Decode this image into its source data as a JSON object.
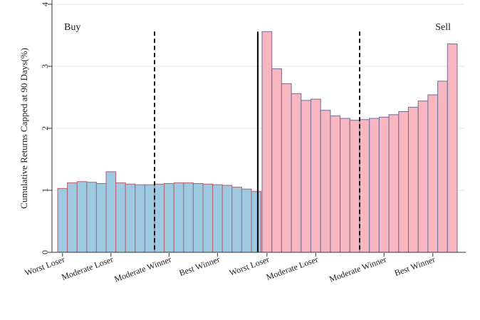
{
  "chart_data": {
    "type": "bar",
    "ylabel": "Cumulative Returns Capped at 90 Days(%)",
    "xlabel": "",
    "ylim": [
      0,
      4
    ],
    "yticks": [
      0,
      1,
      2,
      3,
      4
    ],
    "grid": true,
    "panels": [
      {
        "label": "Buy",
        "color": "#9ecae1",
        "edge_color": "#b06070",
        "values": [
          1.03,
          1.12,
          1.14,
          1.13,
          1.11,
          1.3,
          1.12,
          1.1,
          1.09,
          1.09,
          1.1,
          1.11,
          1.12,
          1.12,
          1.11,
          1.1,
          1.09,
          1.08,
          1.05,
          1.02,
          0.98
        ],
        "divider_after_index": 9,
        "tick_labels": [
          {
            "text": "Worst Loser",
            "index": 0
          },
          {
            "text": "Moderate Loser",
            "index": 5
          },
          {
            "text": "Moderate Winner",
            "index": 11
          },
          {
            "text": "Best Winner",
            "index": 16
          }
        ]
      },
      {
        "label": "Sell",
        "color": "#f7b6c0",
        "edge_color": "#6b6f96",
        "values": [
          3.56,
          2.96,
          2.72,
          2.56,
          2.45,
          2.47,
          2.29,
          2.2,
          2.16,
          2.13,
          2.14,
          2.16,
          2.18,
          2.22,
          2.27,
          2.34,
          2.44,
          2.54,
          2.76,
          3.36
        ],
        "divider_after_index": 9,
        "tick_labels": [
          {
            "text": "Worst Loser",
            "index": 0
          },
          {
            "text": "Moderate Loser",
            "index": 5
          },
          {
            "text": "Moderate Winner",
            "index": 12
          },
          {
            "text": "Best Winner",
            "index": 17
          }
        ]
      }
    ]
  }
}
